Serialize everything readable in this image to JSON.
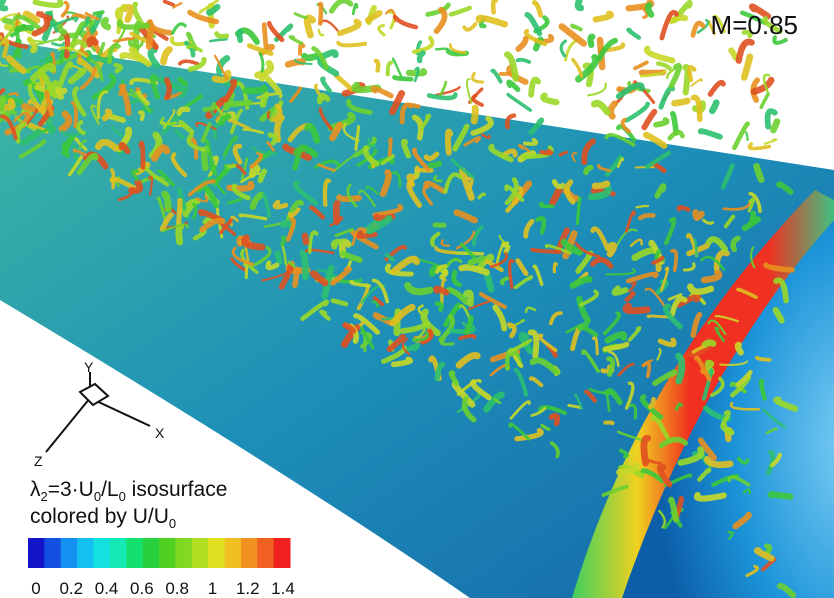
{
  "mach_label": "M=0.85",
  "axes_triad": {
    "x": "X",
    "y": "Y",
    "z": "Z"
  },
  "legend": {
    "line1": [
      "λ",
      "2",
      "=3·U",
      "0",
      "/L",
      "0",
      " isosurface"
    ],
    "line2": [
      "colored by U/U",
      "0"
    ]
  },
  "colorbar": {
    "range": [
      0,
      1.4
    ],
    "ticks": [
      0,
      0.2,
      0.4,
      0.6,
      0.8,
      1,
      1.2,
      1.4
    ],
    "colors": [
      "#1414c8",
      "#1450e0",
      "#1490f0",
      "#14c0f0",
      "#14e0e0",
      "#14e8b4",
      "#14e070",
      "#28d040",
      "#50d020",
      "#80d820",
      "#b0e020",
      "#e0e020",
      "#f0c020",
      "#f09020",
      "#f06020",
      "#f02020"
    ]
  }
}
